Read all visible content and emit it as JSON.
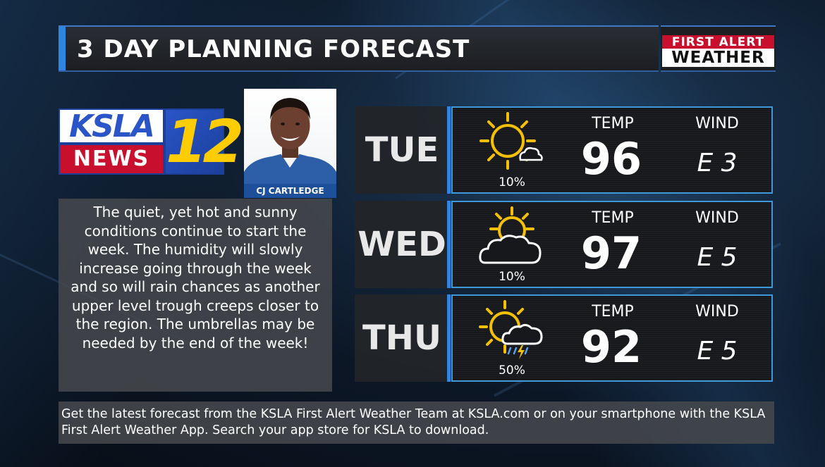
{
  "header": {
    "title": "3 DAY PLANNING FORECAST",
    "brand_top": "FIRST ALERT",
    "brand_bottom": "WEATHER"
  },
  "station_logo": {
    "line1": "KSLA",
    "line2": "NEWS",
    "number": "12"
  },
  "meteorologist": {
    "name": "CJ CARTLEDGE"
  },
  "discussion": "The quiet, yet hot and sunny conditions continue to start the week. The humidity will slowly increase going through the week and so will rain chances as another upper level trough creeps closer to the region. The umbrellas may be needed by the end of the week!",
  "forecast": [
    {
      "day": "TUE",
      "icon": "sun-mostly-sunny-icon",
      "precip": "10%",
      "temp_label": "TEMP",
      "temp": "96",
      "wind_label": "WIND",
      "wind": "E 3"
    },
    {
      "day": "WED",
      "icon": "partly-cloudy-icon",
      "precip": "10%",
      "temp_label": "TEMP",
      "temp": "97",
      "wind_label": "WIND",
      "wind": "E 5"
    },
    {
      "day": "THU",
      "icon": "sun-thunderstorm-icon",
      "precip": "50%",
      "temp_label": "TEMP",
      "temp": "92",
      "wind_label": "WIND",
      "wind": "E 5"
    }
  ],
  "footer": "Get the latest forecast from the KSLA First Alert Weather Team at KSLA.com or on your smartphone with the KSLA First Alert Weather App. Search your app store for KSLA to download.",
  "colors": {
    "accent_blue": "#2f86e0",
    "brand_red": "#c8102e",
    "sun_yellow": "#f5c000"
  }
}
